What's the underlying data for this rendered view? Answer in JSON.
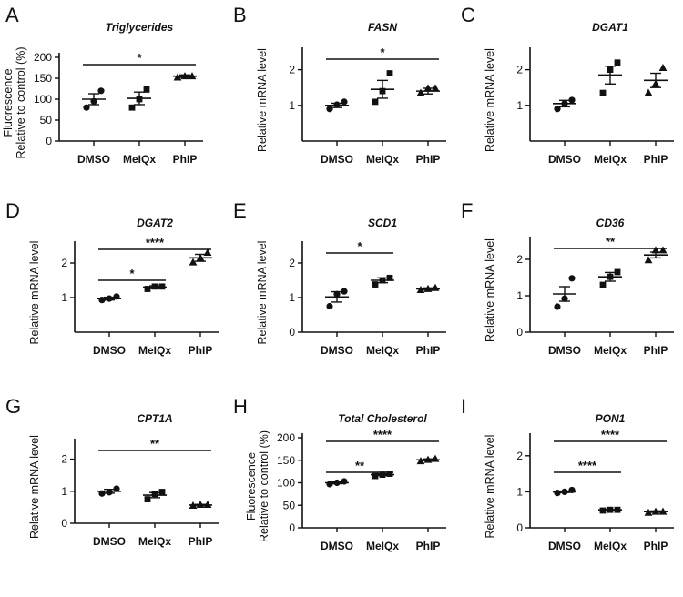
{
  "chart_data": [
    {
      "panel": "A",
      "type": "scatter",
      "title": "Triglycerides",
      "ylabel": [
        "Fluorescence",
        "Relative to control (%)"
      ],
      "categories": [
        "DMSO",
        "MeIQx",
        "PhIP"
      ],
      "ylim": [
        0,
        200
      ],
      "yticks": [
        0,
        50,
        100,
        150,
        200
      ],
      "marker": [
        "circle",
        "square",
        "triangle"
      ],
      "points": [
        [
          80,
          95,
          120
        ],
        [
          80,
          100,
          123
        ],
        [
          152,
          155,
          155
        ]
      ],
      "mean": [
        100,
        102,
        155
      ],
      "sem": [
        13,
        15,
        3
      ],
      "significance": [
        {
          "from": 0,
          "to": 2,
          "label": "*"
        }
      ]
    },
    {
      "panel": "B",
      "type": "scatter",
      "title": "FASN",
      "ylabel": [
        "Relative mRNA level"
      ],
      "categories": [
        "DMSO",
        "MeIQx",
        "PhIP"
      ],
      "ylim": [
        0,
        2.5
      ],
      "yticks": [
        1,
        2
      ],
      "marker": [
        "circle",
        "square",
        "triangle"
      ],
      "points": [
        [
          0.9,
          1.02,
          1.1
        ],
        [
          1.1,
          1.4,
          1.9
        ],
        [
          1.35,
          1.48,
          1.48
        ]
      ],
      "mean": [
        1.0,
        1.45,
        1.4
      ],
      "sem": [
        0.06,
        0.25,
        0.08
      ],
      "significance": [
        {
          "from": 0,
          "to": 2,
          "label": "*"
        }
      ]
    },
    {
      "panel": "C",
      "type": "scatter",
      "title": "DGAT1",
      "ylabel": [
        "Relative mRNA level"
      ],
      "categories": [
        "DMSO",
        "MeIQx",
        "PhIP"
      ],
      "ylim": [
        0,
        2.5
      ],
      "yticks": [
        1,
        2
      ],
      "marker": [
        "circle",
        "square",
        "triangle"
      ],
      "points": [
        [
          0.9,
          1.05,
          1.15
        ],
        [
          1.35,
          2.0,
          2.2
        ],
        [
          1.35,
          1.6,
          2.05
        ]
      ],
      "mean": [
        1.05,
        1.85,
        1.7
      ],
      "sem": [
        0.09,
        0.25,
        0.2
      ],
      "significance": []
    },
    {
      "panel": "D",
      "type": "scatter",
      "title": "DGAT2",
      "ylabel": [
        "Relative mRNA level"
      ],
      "categories": [
        "DMSO",
        "MeIQx",
        "PhIP"
      ],
      "ylim": [
        0,
        2.5
      ],
      "yticks": [
        1,
        2
      ],
      "marker": [
        "circle",
        "square",
        "triangle"
      ],
      "points": [
        [
          0.93,
          0.97,
          1.03
        ],
        [
          1.25,
          1.32,
          1.32
        ],
        [
          2.02,
          2.15,
          2.3
        ]
      ],
      "mean": [
        0.97,
        1.3,
        2.15
      ],
      "sem": [
        0.04,
        0.04,
        0.1
      ],
      "significance": [
        {
          "from": 0,
          "to": 1,
          "label": "*"
        },
        {
          "from": 0,
          "to": 2,
          "label": "****"
        }
      ]
    },
    {
      "panel": "E",
      "type": "scatter",
      "title": "SCD1",
      "ylabel": [
        "Relative mRNA level"
      ],
      "categories": [
        "DMSO",
        "MeIQx",
        "PhIP"
      ],
      "ylim": [
        0,
        2.5
      ],
      "yticks": [
        0,
        1,
        2
      ],
      "marker": [
        "circle",
        "square",
        "triangle"
      ],
      "points": [
        [
          0.75,
          1.1,
          1.18
        ],
        [
          1.38,
          1.5,
          1.57
        ],
        [
          1.22,
          1.25,
          1.28
        ]
      ],
      "mean": [
        1.02,
        1.5,
        1.25
      ],
      "sem": [
        0.15,
        0.07,
        0.03
      ],
      "significance": [
        {
          "from": 0,
          "to": 1,
          "label": "*"
        }
      ]
    },
    {
      "panel": "F",
      "type": "scatter",
      "title": "CD36",
      "ylabel": [
        "Relative mRNA level"
      ],
      "categories": [
        "DMSO",
        "MeIQx",
        "PhIP"
      ],
      "ylim": [
        0,
        2.5
      ],
      "yticks": [
        0,
        1,
        2
      ],
      "marker": [
        "circle",
        "square",
        "triangle"
      ],
      "points": [
        [
          0.7,
          0.92,
          1.48
        ],
        [
          1.3,
          1.52,
          1.65
        ],
        [
          1.98,
          2.25,
          2.25
        ]
      ],
      "mean": [
        1.05,
        1.52,
        2.12
      ],
      "sem": [
        0.2,
        0.12,
        0.08
      ],
      "significance": [
        {
          "from": 0,
          "to": 2,
          "label": "**"
        }
      ]
    },
    {
      "panel": "G",
      "type": "scatter",
      "title": "CPT1A",
      "ylabel": [
        "Relative mRNA level"
      ],
      "categories": [
        "DMSO",
        "MeIQx",
        "PhIP"
      ],
      "ylim": [
        0,
        2.5
      ],
      "yticks": [
        0,
        1,
        2
      ],
      "marker": [
        "circle",
        "square",
        "triangle"
      ],
      "points": [
        [
          0.93,
          0.97,
          1.08
        ],
        [
          0.75,
          0.92,
          0.98
        ],
        [
          0.55,
          0.58,
          0.58
        ]
      ],
      "mean": [
        1.0,
        0.88,
        0.57
      ],
      "sem": [
        0.06,
        0.08,
        0.02
      ],
      "significance": [
        {
          "from": 0,
          "to": 2,
          "label": "**"
        }
      ]
    },
    {
      "panel": "H",
      "type": "scatter",
      "title": "Total Cholesterol",
      "ylabel": [
        "Fluorescence",
        "Relative to control (%)"
      ],
      "categories": [
        "DMSO",
        "MeIQx",
        "PhIP"
      ],
      "ylim": [
        0,
        200
      ],
      "yticks": [
        0,
        50,
        100,
        150,
        200
      ],
      "marker": [
        "circle",
        "square",
        "triangle"
      ],
      "points": [
        [
          97,
          100,
          103
        ],
        [
          115,
          118,
          120
        ],
        [
          148,
          151,
          153
        ]
      ],
      "mean": [
        100,
        118,
        151
      ],
      "sem": [
        2,
        2,
        2
      ],
      "significance": [
        {
          "from": 0,
          "to": 1,
          "label": "**"
        },
        {
          "from": 0,
          "to": 2,
          "label": "****"
        }
      ]
    },
    {
      "panel": "I",
      "type": "scatter",
      "title": "PON1",
      "ylabel": [
        "Relative mRNA level"
      ],
      "categories": [
        "DMSO",
        "MeIQx",
        "PhIP"
      ],
      "ylim": [
        0,
        2.5
      ],
      "yticks": [
        0,
        1,
        2
      ],
      "marker": [
        "circle",
        "square",
        "triangle"
      ],
      "points": [
        [
          0.97,
          1.0,
          1.05
        ],
        [
          0.48,
          0.5,
          0.5
        ],
        [
          0.42,
          0.45,
          0.45
        ]
      ],
      "mean": [
        1.0,
        0.5,
        0.45
      ],
      "sem": [
        0.02,
        0.01,
        0.02
      ],
      "significance": [
        {
          "from": 0,
          "to": 1,
          "label": "****"
        },
        {
          "from": 0,
          "to": 2,
          "label": "****"
        }
      ]
    }
  ]
}
